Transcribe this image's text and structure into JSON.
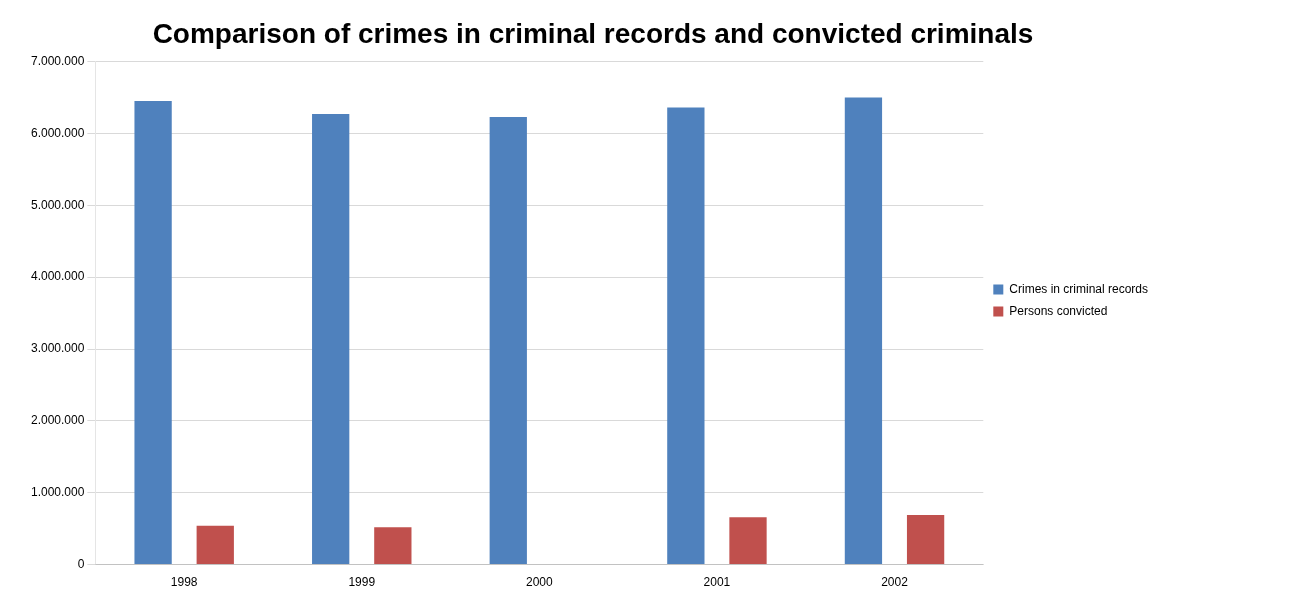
{
  "chart_data": {
    "type": "bar",
    "title": "Comparison of crimes in criminal records and convicted criminals",
    "categories": [
      "1998",
      "1999",
      "2000",
      "2001",
      "2002"
    ],
    "series": [
      {
        "name": "Crimes in criminal records",
        "color": "#4f81bd",
        "values": [
          6450000,
          6270000,
          6230000,
          6360000,
          6500000
        ]
      },
      {
        "name": "Persons convicted",
        "color": "#c0504d",
        "values": [
          540000,
          520000,
          0,
          660000,
          690000
        ]
      }
    ],
    "ylim": [
      0,
      7000000
    ],
    "yticks": [
      {
        "value": 0,
        "label": "0"
      },
      {
        "value": 1000000,
        "label": "1.000.000"
      },
      {
        "value": 2000000,
        "label": "2.000.000"
      },
      {
        "value": 3000000,
        "label": "3.000.000"
      },
      {
        "value": 4000000,
        "label": "4.000.000"
      },
      {
        "value": 5000000,
        "label": "5.000.000"
      },
      {
        "value": 6000000,
        "label": "6.000.000"
      },
      {
        "value": 7000000,
        "label": "7.000.000"
      }
    ],
    "grid": "y",
    "legend": "right"
  }
}
